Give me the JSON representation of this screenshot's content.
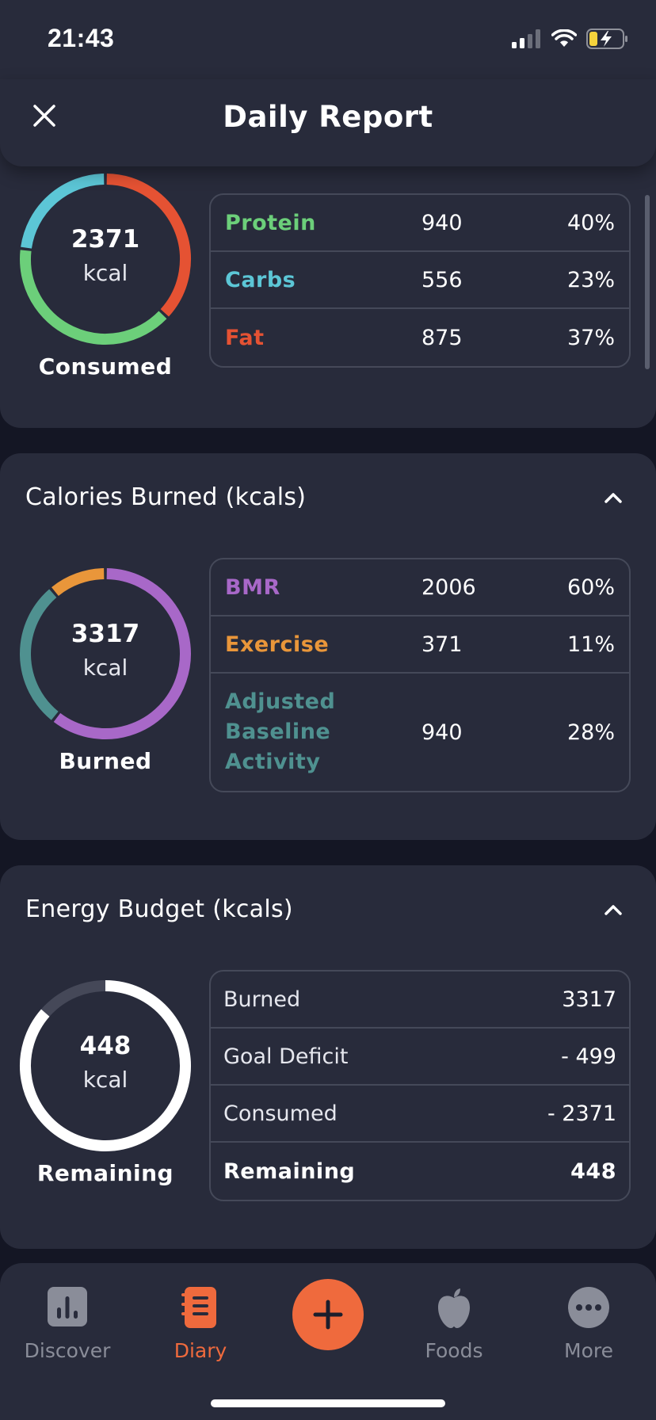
{
  "status_bar": {
    "time": "21:43"
  },
  "header": {
    "title": "Daily Report"
  },
  "consumed": {
    "ring": {
      "value": "2371",
      "unit": "kcal",
      "label": "Consumed"
    },
    "rows": [
      {
        "name": "Protein",
        "value": "940",
        "percent": "40%",
        "color": "#6ccf7a",
        "fraction": 0.4
      },
      {
        "name": "Carbs",
        "value": "556",
        "percent": "23%",
        "color": "#5cc6d6",
        "fraction": 0.23
      },
      {
        "name": "Fat",
        "value": "875",
        "percent": "37%",
        "color": "#e55233",
        "fraction": 0.37
      }
    ]
  },
  "burned": {
    "title": "Calories Burned (kcals)",
    "ring": {
      "value": "3317",
      "unit": "kcal",
      "label": "Burned"
    },
    "rows": [
      {
        "name": "BMR",
        "value": "2006",
        "percent": "60%",
        "color": "#a868c8",
        "fraction": 0.6
      },
      {
        "name": "Exercise",
        "value": "371",
        "percent": "11%",
        "color": "#e9963a",
        "fraction": 0.11
      },
      {
        "name_lines": [
          "Adjusted",
          "Baseline",
          "Activity"
        ],
        "value": "940",
        "percent": "28%",
        "color": "#4f9190",
        "fraction": 0.28
      }
    ]
  },
  "budget": {
    "title": "Energy Budget (kcals)",
    "ring": {
      "value": "448",
      "unit": "kcal",
      "label": "Remaining",
      "fraction_filled": 0.865
    },
    "rows": [
      {
        "label": "Burned",
        "value": "3317"
      },
      {
        "label": "Goal Deficit",
        "value": "- 499"
      },
      {
        "label": "Consumed",
        "value": "- 2371"
      },
      {
        "label": "Remaining",
        "value": "448"
      }
    ]
  },
  "tabbar": {
    "tabs": [
      {
        "label": "Discover",
        "icon": "chart-icon"
      },
      {
        "label": "Diary",
        "icon": "diary-icon"
      },
      {
        "label": "Foods",
        "icon": "apple-icon"
      },
      {
        "label": "More",
        "icon": "more-icon"
      }
    ],
    "active": "Diary"
  },
  "colors": {
    "accent": "#ef6a3d",
    "card": "#282b3b",
    "background": "#141624"
  }
}
